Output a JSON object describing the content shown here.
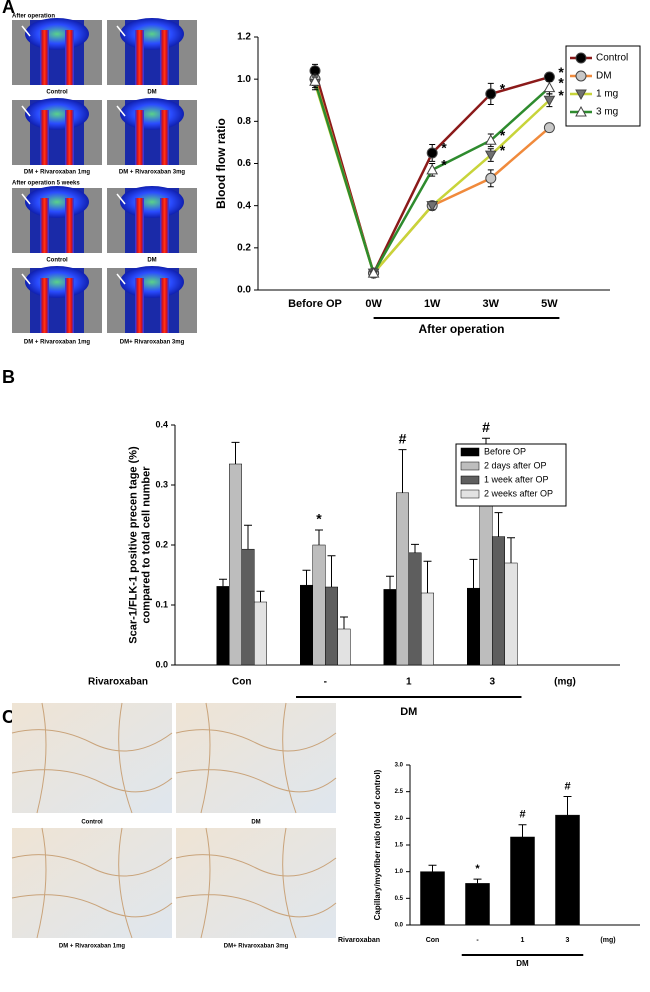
{
  "panel_labels": [
    "A",
    "B",
    "C"
  ],
  "image_panels": {
    "A_top_title": "After operation",
    "A_top_captions": [
      "Control",
      "DM",
      "DM + Rivaroxaban 1mg",
      "DM + Rivaroxaban 3mg"
    ],
    "A_bottom_title": "After operation 5 weeks",
    "A_bottom_captions": [
      "Control",
      "DM",
      "DM + Rivaroxaban 1mg",
      "DM+ Rivaroxaban 3mg"
    ],
    "C_captions": [
      "Control",
      "DM",
      "DM + Rivaroxaban 1mg",
      "DM+ Rivaroxaban 3mg"
    ]
  },
  "chart_data": [
    {
      "type": "line",
      "ylabel": [
        "Blood flow ratio"
      ],
      "categories": [
        "Before OP",
        "0W",
        "1W",
        "3W",
        "5W"
      ],
      "group_label": "After operation",
      "ylim": [
        0,
        1.2
      ],
      "yticks": [
        {
          "value": 0,
          "label": "0.0"
        },
        0.2,
        0.4,
        0.6,
        0.8,
        {
          "value": 1,
          "label": "1.0"
        },
        1.2
      ],
      "legend": "upper right",
      "series": [
        {
          "name": "Control",
          "color": "#8b1a1a",
          "marker": "circle",
          "marker_color": "#000000",
          "values": [
            1.04,
            0.08,
            0.65,
            0.93,
            1.01
          ],
          "errors": [
            0.03,
            0.01,
            0.04,
            0.05,
            0.02
          ],
          "sig": [
            null,
            null,
            "*",
            "*",
            "*"
          ]
        },
        {
          "name": "DM",
          "color": "#f08a3c",
          "marker": "circle",
          "marker_color": "#c8c8c8",
          "values": [
            1.0,
            0.08,
            0.4,
            0.53,
            0.77
          ],
          "errors": [
            0.03,
            0.01,
            0.02,
            0.04,
            0.02
          ],
          "sig": [
            null,
            null,
            null,
            null,
            null
          ]
        },
        {
          "name": "1 mg",
          "color": "#c8d43a",
          "marker": "triangle-down",
          "marker_color": "#707070",
          "values": [
            0.98,
            0.08,
            0.4,
            0.64,
            0.9
          ],
          "errors": [
            0.03,
            0.01,
            0.02,
            0.03,
            0.03
          ],
          "sig": [
            null,
            null,
            null,
            "*",
            "*"
          ]
        },
        {
          "name": "3 mg",
          "color": "#2e8b2e",
          "marker": "triangle-up",
          "marker_color": "#ffffff",
          "values": [
            0.99,
            0.08,
            0.57,
            0.71,
            0.96
          ],
          "errors": [
            0.03,
            0.01,
            0.03,
            0.03,
            0.03
          ],
          "sig": [
            null,
            null,
            "*",
            "*",
            "*"
          ]
        }
      ]
    },
    {
      "type": "bar",
      "ylabel": [
        "Scar-1/FLK-1 positive precen tage (%)",
        "compared to total cell number"
      ],
      "categories": [
        "Con",
        "-",
        "1",
        "3"
      ],
      "row_label": "Rivaroxaban",
      "unit_label": "(mg)",
      "group_label": "DM",
      "ylim": [
        0,
        0.4
      ],
      "yticks": [
        {
          "value": 0,
          "label": "0.0"
        },
        0.1,
        0.2,
        0.3,
        0.4
      ],
      "legend": "upper right",
      "series": [
        {
          "name": "Before OP",
          "color": "#000000",
          "values": [
            0.131,
            0.133,
            0.126,
            0.128
          ],
          "errors": [
            0.012,
            0.025,
            0.022,
            0.048
          ],
          "sig": [
            null,
            null,
            null,
            null
          ]
        },
        {
          "name": "2 days after OP",
          "color": "#bdbdbd",
          "values": [
            0.335,
            0.2,
            0.287,
            0.3
          ],
          "errors": [
            0.036,
            0.025,
            0.072,
            0.078
          ],
          "sig": [
            null,
            "*",
            "#",
            "#"
          ]
        },
        {
          "name": "1 week after OP",
          "color": "#5e5e5e",
          "values": [
            0.193,
            0.13,
            0.187,
            0.214
          ],
          "errors": [
            0.04,
            0.052,
            0.014,
            0.04
          ],
          "sig": [
            null,
            null,
            null,
            null
          ]
        },
        {
          "name": "2 weeks after OP",
          "color": "#e2e2e2",
          "values": [
            0.105,
            0.06,
            0.12,
            0.17
          ],
          "errors": [
            0.018,
            0.02,
            0.053,
            0.042
          ],
          "sig": [
            null,
            null,
            null,
            null
          ]
        }
      ]
    },
    {
      "type": "bar",
      "ylabel": [
        "Capillary/myofiber ratio (fold of control)"
      ],
      "categories": [
        "Con",
        "-",
        "1",
        "3"
      ],
      "row_label": "Rivaroxaban",
      "unit_label": "(mg)",
      "group_label": "DM",
      "ylim": [
        0,
        3
      ],
      "yticks": [
        {
          "value": 0,
          "label": "0.0"
        },
        0.5,
        {
          "value": 1,
          "label": "1.0"
        },
        1.5,
        {
          "value": 2,
          "label": "2.0"
        },
        2.5,
        {
          "value": 3,
          "label": "3.0"
        }
      ],
      "color": "#000000",
      "values": [
        1.0,
        0.78,
        1.65,
        2.06
      ],
      "errors": [
        0.12,
        0.08,
        0.23,
        0.35
      ],
      "sig": [
        null,
        "*",
        "#",
        "#"
      ]
    }
  ]
}
